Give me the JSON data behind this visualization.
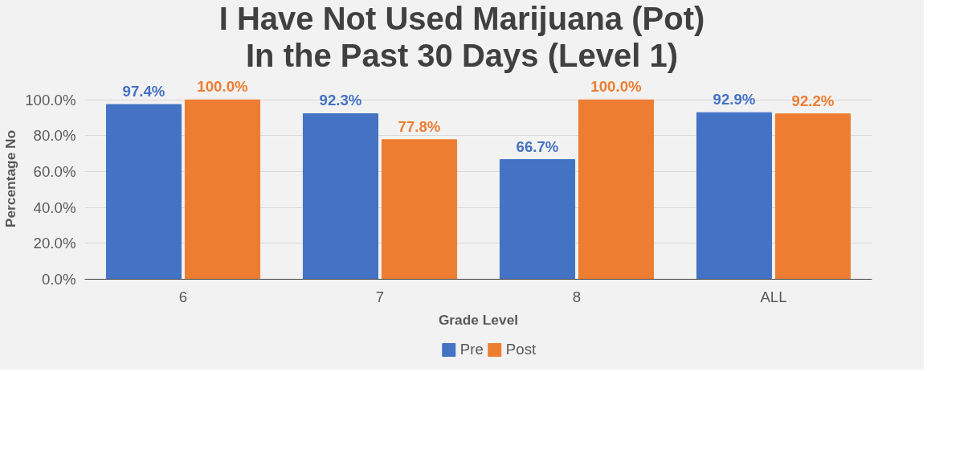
{
  "chart_data": {
    "type": "bar",
    "title": "I Have Not Used Marijuana (Pot)\nIn the Past 30 Days (Level 1)",
    "xlabel": "Grade Level",
    "ylabel": "Percentage No",
    "categories": [
      "6",
      "7",
      "8",
      "ALL"
    ],
    "series": [
      {
        "name": "Pre",
        "color": "#4472c4",
        "values": [
          97.4,
          92.3,
          66.7,
          92.9
        ],
        "value_labels": [
          "97.4%",
          "92.3%",
          "66.7%",
          "92.9%"
        ]
      },
      {
        "name": "Post",
        "color": "#ed7d31",
        "values": [
          100.0,
          77.8,
          100.0,
          92.2
        ],
        "value_labels": [
          "100.0%",
          "77.8%",
          "100.0%",
          "92.2%"
        ]
      }
    ],
    "ylim": [
      0,
      100
    ],
    "yticks": [
      {
        "value": 0,
        "label": "0.0%"
      },
      {
        "value": 20,
        "label": "20.0%"
      },
      {
        "value": 40,
        "label": "40.0%"
      },
      {
        "value": 60,
        "label": "60.0%"
      },
      {
        "value": 80,
        "label": "80.0%"
      },
      {
        "value": 100,
        "label": "100.0%"
      }
    ],
    "grid": "y",
    "legend": "bottom"
  }
}
